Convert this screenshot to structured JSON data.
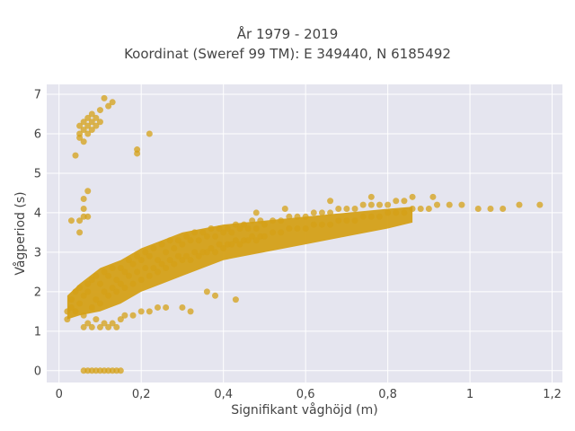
{
  "chart_data": {
    "type": "scatter",
    "title_line1": "År 1979 - 2019",
    "title_line2": "Koordinat (Sweref 99 TM): E 349440, N 6185492",
    "xlabel": "Signifikant våghöjd (m)",
    "ylabel": "Vågperiod (s)",
    "xlim": [
      -0.03,
      1.225
    ],
    "ylim": [
      -0.3,
      7.25
    ],
    "x_ticks": [
      "0",
      "0,2",
      "0,4",
      "0,6",
      "0,8",
      "1",
      "1,2"
    ],
    "x_tick_values": [
      0,
      0.2,
      0.4,
      0.6,
      0.8,
      1.0,
      1.2
    ],
    "y_ticks": [
      "0",
      "1",
      "2",
      "3",
      "4",
      "5",
      "6",
      "7"
    ],
    "y_tick_values": [
      0,
      1,
      2,
      3,
      4,
      5,
      6,
      7
    ],
    "grid": true,
    "colors": {
      "marker": "#D4A017",
      "plot_bg": "#E5E5EF",
      "grid": "#ffffff"
    },
    "marker_opacity": 0.75,
    "series": [
      {
        "description_of_distribution": "dense band",
        "points": [
          [
            0.02,
            1.3
          ],
          [
            0.02,
            1.5
          ],
          [
            0.03,
            1.6
          ],
          [
            0.03,
            1.8
          ],
          [
            0.04,
            1.5
          ],
          [
            0.04,
            2.0
          ],
          [
            0.05,
            1.7
          ],
          [
            0.05,
            2.1
          ],
          [
            0.06,
            1.4
          ],
          [
            0.06,
            1.9
          ],
          [
            0.07,
            2.0
          ],
          [
            0.07,
            2.2
          ],
          [
            0.08,
            1.6
          ],
          [
            0.08,
            2.3
          ],
          [
            0.09,
            1.8
          ],
          [
            0.09,
            2.4
          ],
          [
            0.1,
            1.7
          ],
          [
            0.1,
            2.2
          ],
          [
            0.11,
            2.0
          ],
          [
            0.11,
            2.5
          ],
          [
            0.12,
            1.9
          ],
          [
            0.12,
            2.4
          ],
          [
            0.13,
            2.1
          ],
          [
            0.13,
            2.6
          ],
          [
            0.14,
            2.0
          ],
          [
            0.14,
            2.3
          ],
          [
            0.15,
            2.2
          ],
          [
            0.15,
            2.6
          ],
          [
            0.16,
            2.1
          ],
          [
            0.16,
            2.5
          ],
          [
            0.17,
            2.4
          ],
          [
            0.17,
            2.8
          ],
          [
            0.18,
            2.2
          ],
          [
            0.18,
            2.7
          ],
          [
            0.19,
            2.5
          ],
          [
            0.19,
            2.9
          ],
          [
            0.2,
            2.3
          ],
          [
            0.2,
            2.8
          ],
          [
            0.21,
            2.6
          ],
          [
            0.21,
            3.0
          ],
          [
            0.22,
            2.4
          ],
          [
            0.22,
            2.9
          ],
          [
            0.23,
            2.6
          ],
          [
            0.23,
            3.1
          ],
          [
            0.24,
            2.5
          ],
          [
            0.24,
            2.8
          ],
          [
            0.25,
            2.7
          ],
          [
            0.25,
            3.2
          ],
          [
            0.26,
            2.6
          ],
          [
            0.26,
            3.0
          ],
          [
            0.27,
            2.8
          ],
          [
            0.27,
            3.3
          ],
          [
            0.28,
            2.7
          ],
          [
            0.28,
            3.1
          ],
          [
            0.29,
            2.9
          ],
          [
            0.29,
            3.3
          ],
          [
            0.3,
            2.8
          ],
          [
            0.3,
            3.2
          ],
          [
            0.31,
            2.9
          ],
          [
            0.31,
            3.4
          ],
          [
            0.32,
            2.8
          ],
          [
            0.32,
            3.3
          ],
          [
            0.33,
            3.0
          ],
          [
            0.33,
            3.5
          ],
          [
            0.34,
            2.9
          ],
          [
            0.34,
            3.3
          ],
          [
            0.35,
            3.0
          ],
          [
            0.35,
            3.5
          ],
          [
            0.36,
            3.0
          ],
          [
            0.36,
            3.4
          ],
          [
            0.37,
            3.1
          ],
          [
            0.37,
            3.6
          ],
          [
            0.38,
            3.0
          ],
          [
            0.38,
            3.4
          ],
          [
            0.39,
            3.2
          ],
          [
            0.39,
            3.6
          ],
          [
            0.4,
            3.1
          ],
          [
            0.4,
            3.5
          ],
          [
            0.41,
            3.2
          ],
          [
            0.41,
            3.6
          ],
          [
            0.42,
            3.2
          ],
          [
            0.42,
            3.5
          ],
          [
            0.43,
            3.3
          ],
          [
            0.43,
            3.7
          ],
          [
            0.44,
            3.2
          ],
          [
            0.44,
            3.6
          ],
          [
            0.45,
            3.3
          ],
          [
            0.45,
            3.7
          ],
          [
            0.46,
            3.3
          ],
          [
            0.46,
            3.6
          ],
          [
            0.47,
            3.4
          ],
          [
            0.47,
            3.8
          ],
          [
            0.48,
            3.3
          ],
          [
            0.48,
            3.6
          ],
          [
            0.49,
            3.4
          ],
          [
            0.49,
            3.8
          ],
          [
            0.5,
            3.4
          ],
          [
            0.5,
            3.7
          ],
          [
            0.52,
            3.5
          ],
          [
            0.52,
            3.8
          ],
          [
            0.54,
            3.5
          ],
          [
            0.54,
            3.8
          ],
          [
            0.56,
            3.6
          ],
          [
            0.56,
            3.9
          ],
          [
            0.58,
            3.6
          ],
          [
            0.58,
            3.9
          ],
          [
            0.6,
            3.6
          ],
          [
            0.6,
            3.9
          ],
          [
            0.62,
            3.7
          ],
          [
            0.62,
            4.0
          ],
          [
            0.64,
            3.7
          ],
          [
            0.64,
            4.0
          ],
          [
            0.66,
            3.7
          ],
          [
            0.66,
            4.0
          ],
          [
            0.68,
            3.8
          ],
          [
            0.68,
            4.1
          ],
          [
            0.7,
            3.8
          ],
          [
            0.7,
            4.1
          ],
          [
            0.72,
            3.8
          ],
          [
            0.72,
            4.1
          ],
          [
            0.74,
            3.9
          ],
          [
            0.74,
            4.2
          ],
          [
            0.76,
            3.9
          ],
          [
            0.76,
            4.2
          ],
          [
            0.78,
            3.9
          ],
          [
            0.78,
            4.2
          ],
          [
            0.8,
            4.0
          ],
          [
            0.8,
            4.2
          ],
          [
            0.82,
            4.0
          ],
          [
            0.82,
            4.3
          ],
          [
            0.84,
            4.0
          ],
          [
            0.84,
            4.3
          ],
          [
            0.86,
            4.1
          ],
          [
            0.88,
            4.1
          ],
          [
            0.9,
            4.1
          ],
          [
            0.92,
            4.2
          ],
          [
            0.95,
            4.2
          ],
          [
            0.98,
            4.2
          ],
          [
            1.02,
            4.1
          ],
          [
            1.05,
            4.1
          ],
          [
            1.08,
            4.1
          ],
          [
            1.12,
            4.2
          ],
          [
            1.17,
            4.2
          ],
          [
            0.86,
            4.4
          ],
          [
            0.91,
            4.4
          ],
          [
            0.76,
            4.4
          ],
          [
            0.66,
            4.3
          ],
          [
            0.55,
            4.1
          ],
          [
            0.48,
            4.0
          ]
        ]
      },
      {
        "description_of_distribution": "lower cluster",
        "points": [
          [
            0.06,
            1.1
          ],
          [
            0.07,
            1.2
          ],
          [
            0.08,
            1.1
          ],
          [
            0.09,
            1.3
          ],
          [
            0.1,
            1.1
          ],
          [
            0.11,
            1.2
          ],
          [
            0.12,
            1.1
          ],
          [
            0.13,
            1.2
          ],
          [
            0.14,
            1.1
          ],
          [
            0.15,
            1.3
          ],
          [
            0.16,
            1.4
          ],
          [
            0.18,
            1.4
          ],
          [
            0.2,
            1.5
          ],
          [
            0.22,
            1.5
          ],
          [
            0.24,
            1.6
          ],
          [
            0.26,
            1.6
          ],
          [
            0.3,
            1.6
          ],
          [
            0.32,
            1.5
          ],
          [
            0.43,
            1.8
          ],
          [
            0.38,
            1.9
          ],
          [
            0.36,
            2.0
          ]
        ]
      },
      {
        "description_of_distribution": "zero-period row",
        "points": [
          [
            0.06,
            0
          ],
          [
            0.07,
            0
          ],
          [
            0.08,
            0
          ],
          [
            0.09,
            0
          ],
          [
            0.1,
            0
          ],
          [
            0.11,
            0
          ],
          [
            0.12,
            0
          ],
          [
            0.13,
            0
          ],
          [
            0.14,
            0
          ],
          [
            0.15,
            0
          ]
        ]
      },
      {
        "description_of_distribution": "high-period outliers",
        "points": [
          [
            0.04,
            5.45
          ],
          [
            0.05,
            5.9
          ],
          [
            0.05,
            6.0
          ],
          [
            0.05,
            6.2
          ],
          [
            0.06,
            5.8
          ],
          [
            0.06,
            6.1
          ],
          [
            0.06,
            6.3
          ],
          [
            0.07,
            6.0
          ],
          [
            0.07,
            6.2
          ],
          [
            0.07,
            6.4
          ],
          [
            0.08,
            6.1
          ],
          [
            0.08,
            6.3
          ],
          [
            0.08,
            6.5
          ],
          [
            0.09,
            6.2
          ],
          [
            0.09,
            6.4
          ],
          [
            0.1,
            6.3
          ],
          [
            0.1,
            6.6
          ],
          [
            0.11,
            6.9
          ],
          [
            0.12,
            6.7
          ],
          [
            0.13,
            6.8
          ],
          [
            0.19,
            5.5
          ],
          [
            0.19,
            5.6
          ],
          [
            0.22,
            6.0
          ],
          [
            0.03,
            3.8
          ],
          [
            0.05,
            3.5
          ],
          [
            0.05,
            3.8
          ],
          [
            0.06,
            3.9
          ],
          [
            0.06,
            4.1
          ],
          [
            0.06,
            4.35
          ],
          [
            0.07,
            4.55
          ],
          [
            0.07,
            3.9
          ]
        ]
      }
    ]
  }
}
